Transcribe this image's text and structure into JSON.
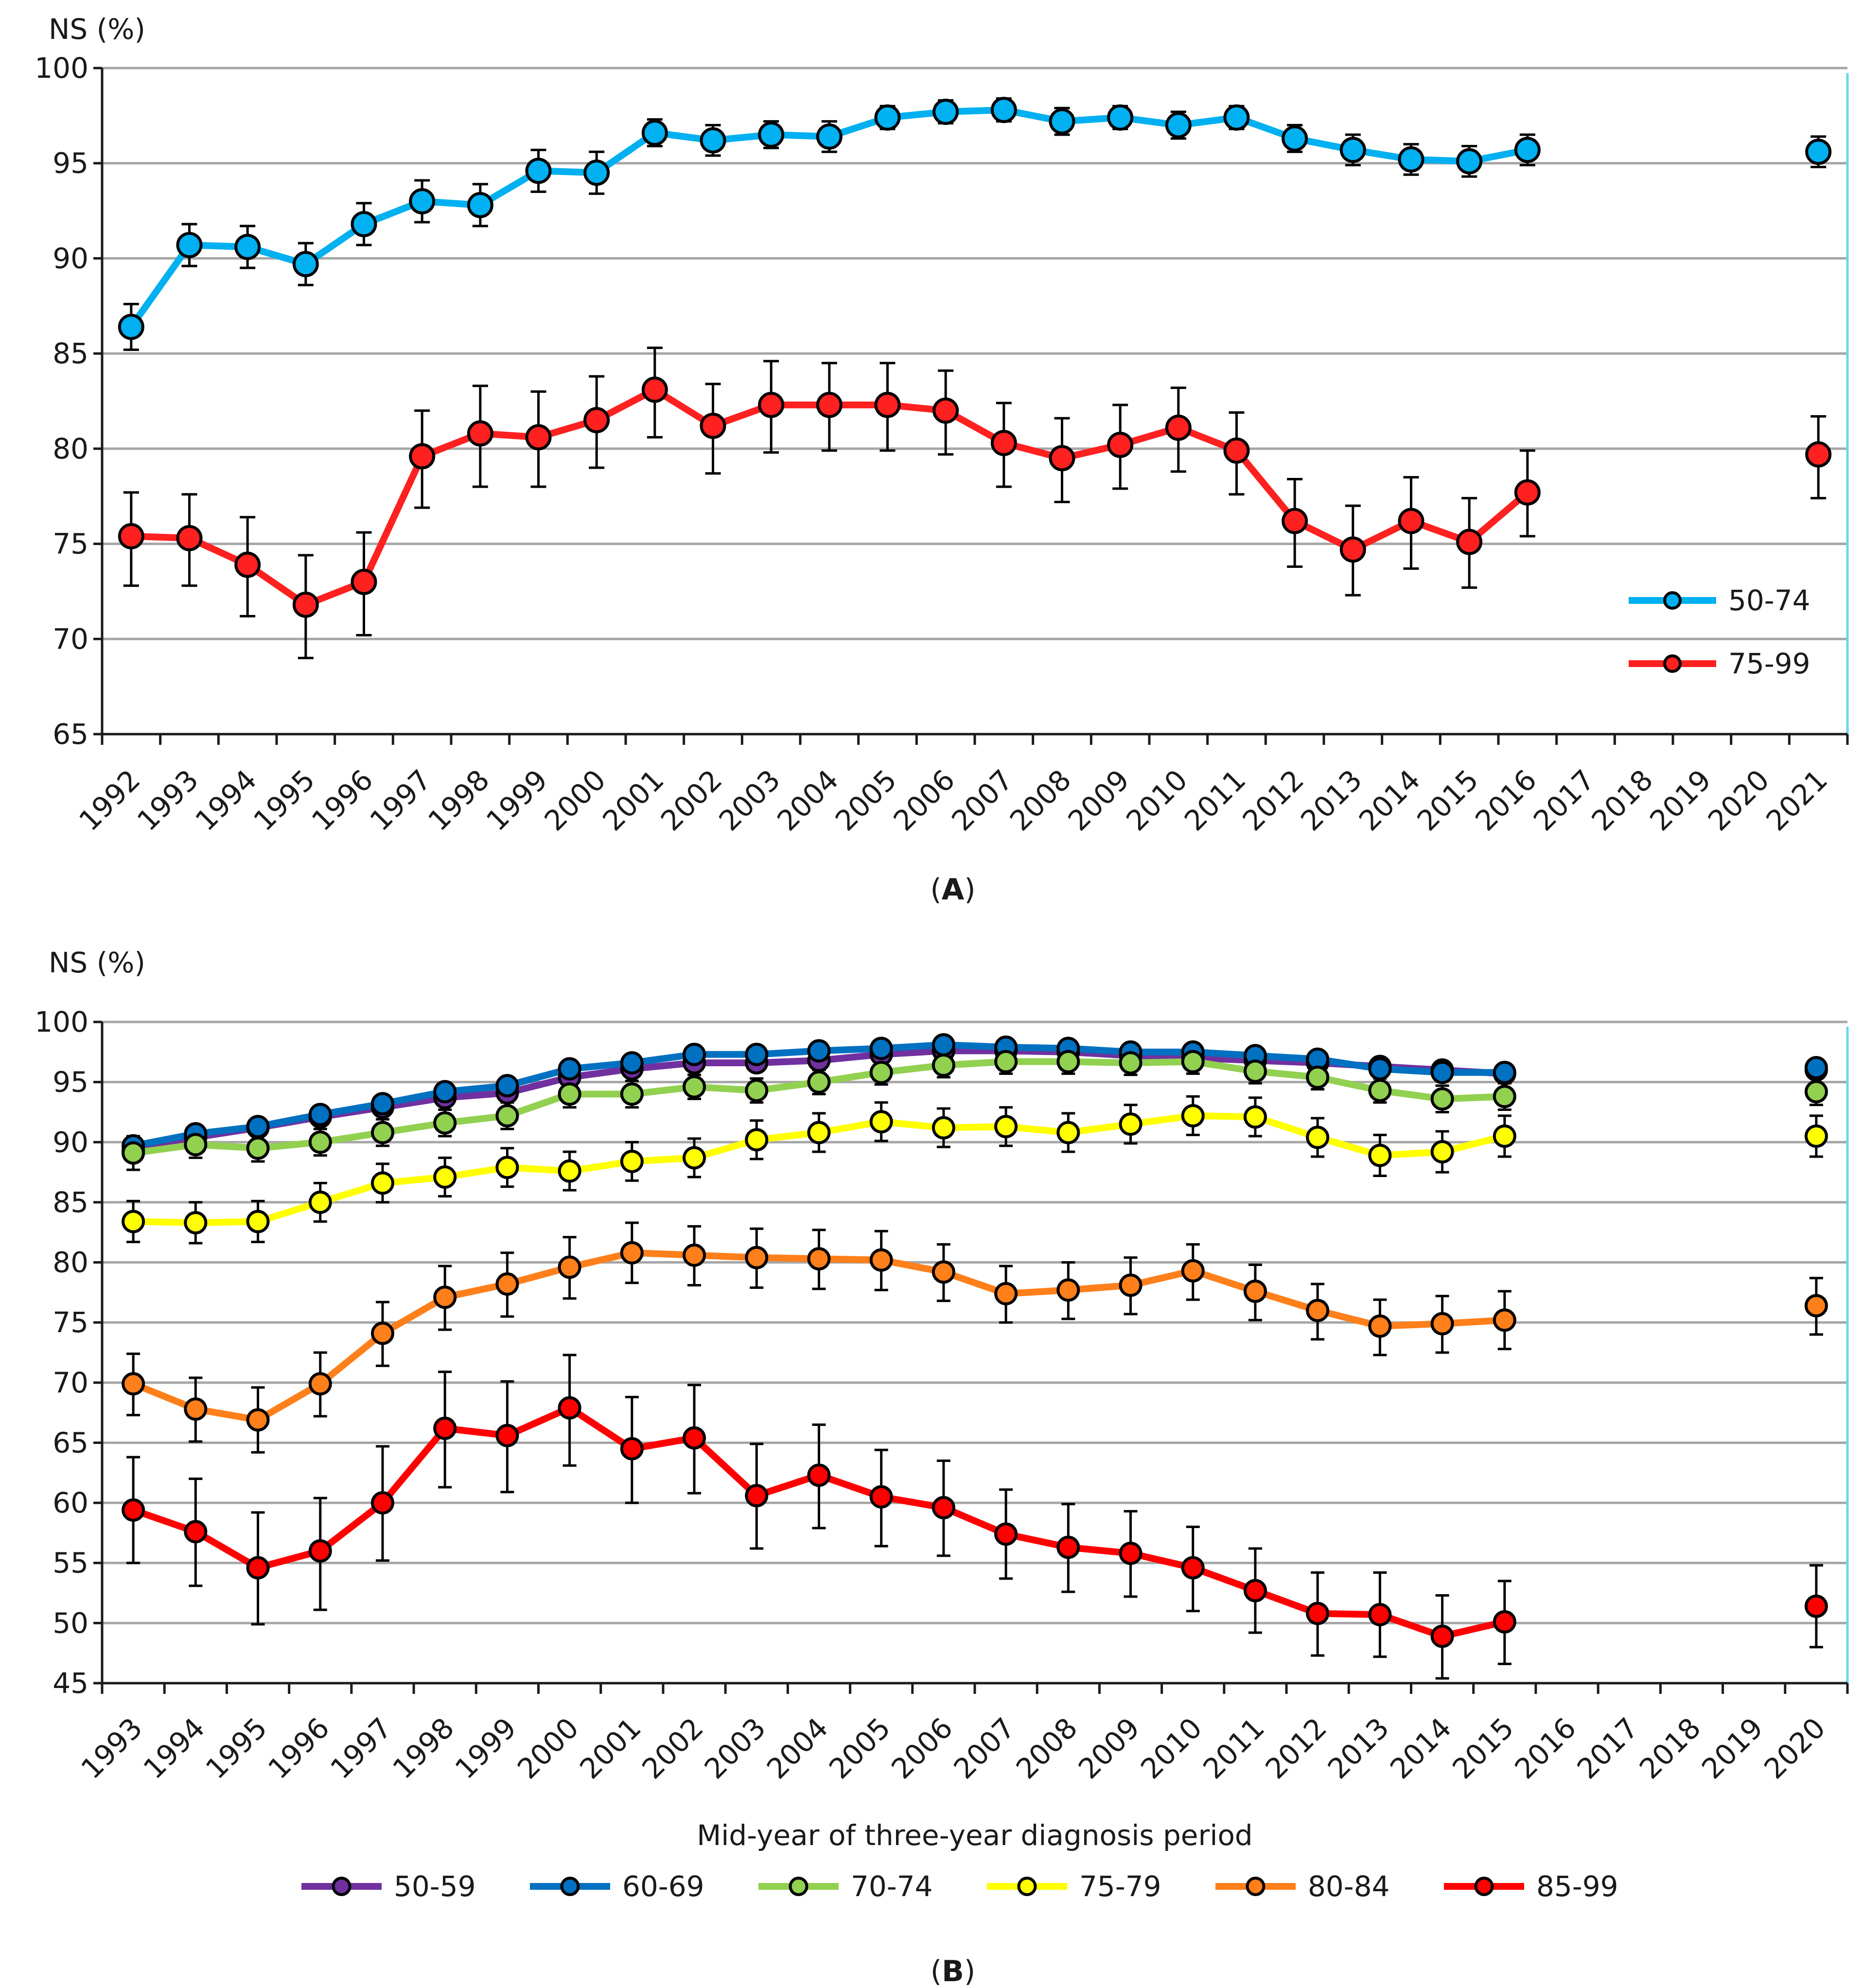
{
  "chart_data": [
    {
      "type": "line",
      "panel_label": "A",
      "ylabel": "NS (%)",
      "xlabel": "",
      "ylim": [
        65,
        100
      ],
      "yticks": [
        65,
        70,
        75,
        80,
        85,
        90,
        95,
        100
      ],
      "x": [
        "1992",
        "1993",
        "1994",
        "1995",
        "1996",
        "1997",
        "1998",
        "1999",
        "2000",
        "2001",
        "2002",
        "2003",
        "2004",
        "2005",
        "2006",
        "2007",
        "2008",
        "2009",
        "2010",
        "2011",
        "2012",
        "2013",
        "2014",
        "2015",
        "2016",
        "2017",
        "2018",
        "2019",
        "2020",
        "2021"
      ],
      "grid": true,
      "legend_position": "bottom-right",
      "series": [
        {
          "name": "50-74",
          "color": "#00b0f0",
          "values": [
            86.4,
            90.7,
            90.6,
            89.7,
            91.8,
            93.0,
            92.8,
            94.6,
            94.5,
            96.6,
            96.2,
            96.5,
            96.4,
            97.4,
            97.7,
            97.8,
            97.2,
            97.4,
            97.0,
            97.4,
            96.3,
            95.7,
            95.2,
            95.1,
            95.7,
            null,
            null,
            null,
            null,
            95.6
          ],
          "lower": [
            85.2,
            89.6,
            89.5,
            88.6,
            90.7,
            91.9,
            91.7,
            93.5,
            93.4,
            95.9,
            95.4,
            95.8,
            95.6,
            96.8,
            97.1,
            97.2,
            96.5,
            96.8,
            96.3,
            96.8,
            95.6,
            94.9,
            94.4,
            94.3,
            94.9,
            null,
            null,
            null,
            null,
            94.8
          ],
          "upper": [
            87.6,
            91.8,
            91.7,
            90.8,
            92.9,
            94.1,
            93.9,
            95.7,
            95.6,
            97.3,
            97.0,
            97.2,
            97.2,
            98.0,
            98.3,
            98.4,
            97.9,
            98.0,
            97.7,
            98.0,
            97.0,
            96.5,
            96.0,
            95.9,
            96.5,
            null,
            null,
            null,
            null,
            96.4
          ]
        },
        {
          "name": "75-99",
          "color": "#ff2020",
          "values": [
            75.4,
            75.3,
            73.9,
            71.8,
            73.0,
            79.6,
            80.8,
            80.6,
            81.5,
            83.1,
            81.2,
            82.3,
            82.3,
            82.3,
            82.0,
            80.3,
            79.5,
            80.2,
            81.1,
            79.9,
            76.2,
            74.7,
            76.2,
            75.1,
            77.7,
            null,
            null,
            null,
            null,
            79.7
          ],
          "lower": [
            72.8,
            72.8,
            71.2,
            69.0,
            70.2,
            76.9,
            78.0,
            78.0,
            79.0,
            80.6,
            78.7,
            79.8,
            79.9,
            79.9,
            79.7,
            78.0,
            77.2,
            77.9,
            78.8,
            77.6,
            73.8,
            72.3,
            73.7,
            72.7,
            75.4,
            null,
            null,
            null,
            null,
            77.4
          ],
          "upper": [
            77.7,
            77.6,
            76.4,
            74.4,
            75.6,
            82.0,
            83.3,
            83.0,
            83.8,
            85.3,
            83.4,
            84.6,
            84.5,
            84.5,
            84.1,
            82.4,
            81.6,
            82.3,
            83.2,
            81.9,
            78.4,
            77.0,
            78.5,
            77.4,
            79.9,
            null,
            null,
            null,
            null,
            81.7
          ]
        }
      ]
    },
    {
      "type": "line",
      "panel_label": "B",
      "ylabel": "NS (%)",
      "xlabel": "Mid-year of three-year diagnosis period",
      "ylim": [
        45,
        100
      ],
      "yticks": [
        45,
        50,
        55,
        60,
        65,
        70,
        75,
        80,
        85,
        90,
        95,
        100
      ],
      "x": [
        "1993",
        "1994",
        "1995",
        "1996",
        "1997",
        "1998",
        "1999",
        "2000",
        "2001",
        "2002",
        "2003",
        "2004",
        "2005",
        "2006",
        "2007",
        "2008",
        "2009",
        "2010",
        "2011",
        "2012",
        "2013",
        "2014",
        "2015",
        "2016",
        "2017",
        "2018",
        "2019",
        "2020"
      ],
      "grid": true,
      "legend_position": "bottom",
      "series": [
        {
          "name": "50-59",
          "color": "#7030a0",
          "values": [
            89.3,
            90.4,
            91.2,
            92.1,
            92.9,
            93.7,
            94.1,
            95.4,
            96.1,
            96.6,
            96.6,
            96.8,
            97.3,
            97.6,
            97.6,
            97.5,
            97.2,
            97.0,
            96.8,
            96.6,
            96.3,
            96.0,
            95.7,
            null,
            null,
            null,
            null,
            96.0
          ],
          "lower": null,
          "upper": null
        },
        {
          "name": "60-69",
          "color": "#0070c0",
          "values": [
            89.7,
            90.7,
            91.3,
            92.3,
            93.2,
            94.2,
            94.7,
            96.1,
            96.6,
            97.3,
            97.3,
            97.6,
            97.8,
            98.1,
            97.9,
            97.8,
            97.5,
            97.5,
            97.2,
            96.9,
            96.1,
            95.8,
            95.8,
            null,
            null,
            null,
            null,
            96.2
          ],
          "lower": null,
          "upper": null
        },
        {
          "name": "70-74",
          "color": "#92d050",
          "values": [
            89.1,
            89.8,
            89.5,
            90.0,
            90.8,
            91.6,
            92.2,
            94.0,
            94.0,
            94.6,
            94.3,
            95.0,
            95.8,
            96.4,
            96.7,
            96.7,
            96.6,
            96.7,
            95.9,
            95.4,
            94.3,
            93.6,
            93.8,
            null,
            null,
            null,
            null,
            94.2
          ],
          "lower": [
            87.7,
            88.7,
            88.4,
            88.9,
            89.7,
            90.5,
            91.1,
            92.9,
            92.9,
            93.6,
            93.3,
            94.0,
            94.8,
            95.4,
            95.7,
            95.7,
            95.6,
            95.7,
            94.9,
            94.4,
            93.3,
            92.5,
            92.7,
            null,
            null,
            null,
            null,
            93.1
          ],
          "upper": [
            90.5,
            90.9,
            90.6,
            91.1,
            91.9,
            92.7,
            93.3,
            95.1,
            95.1,
            95.6,
            95.3,
            96.0,
            96.8,
            97.4,
            97.7,
            97.7,
            97.6,
            97.7,
            96.9,
            96.4,
            95.3,
            94.7,
            94.9,
            null,
            null,
            null,
            null,
            95.3
          ]
        },
        {
          "name": "75-79",
          "color": "#ffff00",
          "values": [
            83.4,
            83.3,
            83.4,
            85.0,
            86.6,
            87.1,
            87.9,
            87.6,
            88.4,
            88.7,
            90.2,
            90.8,
            91.7,
            91.2,
            91.3,
            90.8,
            91.5,
            92.2,
            92.1,
            90.4,
            88.9,
            89.2,
            90.5,
            null,
            null,
            null,
            null,
            90.5
          ],
          "lower": [
            81.7,
            81.6,
            81.7,
            83.4,
            85.0,
            85.5,
            86.3,
            86.0,
            86.8,
            87.1,
            88.6,
            89.2,
            90.1,
            89.6,
            89.7,
            89.2,
            89.9,
            90.6,
            90.5,
            88.8,
            87.2,
            87.5,
            88.8,
            null,
            null,
            null,
            null,
            88.8
          ],
          "upper": [
            85.1,
            85.0,
            85.1,
            86.6,
            88.2,
            88.7,
            89.5,
            89.2,
            90.0,
            90.3,
            91.8,
            92.4,
            93.3,
            92.8,
            92.9,
            92.4,
            93.1,
            93.8,
            93.7,
            92.0,
            90.6,
            90.9,
            92.2,
            null,
            null,
            null,
            null,
            92.2
          ]
        },
        {
          "name": "80-84",
          "color": "#ff7f1a",
          "values": [
            69.9,
            67.8,
            66.9,
            69.9,
            74.1,
            77.1,
            78.2,
            79.6,
            80.8,
            80.6,
            80.4,
            80.3,
            80.2,
            79.2,
            77.4,
            77.7,
            78.1,
            79.3,
            77.6,
            76.0,
            74.7,
            74.9,
            75.2,
            null,
            null,
            null,
            null,
            76.4
          ],
          "lower": [
            67.3,
            65.1,
            64.2,
            67.2,
            71.4,
            74.4,
            75.5,
            77.0,
            78.3,
            78.1,
            77.9,
            77.8,
            77.7,
            76.8,
            75.0,
            75.3,
            75.7,
            76.9,
            75.2,
            73.6,
            72.3,
            72.5,
            72.8,
            null,
            null,
            null,
            null,
            74.0
          ],
          "upper": [
            72.4,
            70.4,
            69.6,
            72.5,
            76.7,
            79.7,
            80.8,
            82.1,
            83.3,
            83.0,
            82.8,
            82.7,
            82.6,
            81.5,
            79.7,
            80.0,
            80.4,
            81.5,
            79.8,
            78.2,
            76.9,
            77.2,
            77.6,
            null,
            null,
            null,
            null,
            78.7
          ]
        },
        {
          "name": "85-99",
          "color": "#ff0000",
          "values": [
            59.4,
            57.6,
            54.6,
            56.0,
            60.0,
            66.2,
            65.6,
            67.9,
            64.5,
            65.4,
            60.6,
            62.3,
            60.5,
            59.6,
            57.4,
            56.3,
            55.8,
            54.6,
            52.7,
            50.8,
            50.7,
            48.9,
            50.1,
            null,
            null,
            null,
            null,
            51.4
          ],
          "lower": [
            55.0,
            53.1,
            49.9,
            51.1,
            55.2,
            61.3,
            60.9,
            63.1,
            60.0,
            60.8,
            56.2,
            57.9,
            56.4,
            55.6,
            53.7,
            52.6,
            52.2,
            51.0,
            49.2,
            47.3,
            47.2,
            45.4,
            46.6,
            null,
            null,
            null,
            null,
            48.0
          ],
          "upper": [
            63.8,
            62.0,
            59.2,
            60.4,
            64.7,
            70.9,
            70.1,
            72.3,
            68.8,
            69.8,
            64.9,
            66.5,
            64.4,
            63.5,
            61.1,
            59.9,
            59.3,
            58.0,
            56.2,
            54.2,
            54.2,
            52.3,
            53.5,
            null,
            null,
            null,
            null,
            54.8
          ]
        }
      ]
    }
  ]
}
